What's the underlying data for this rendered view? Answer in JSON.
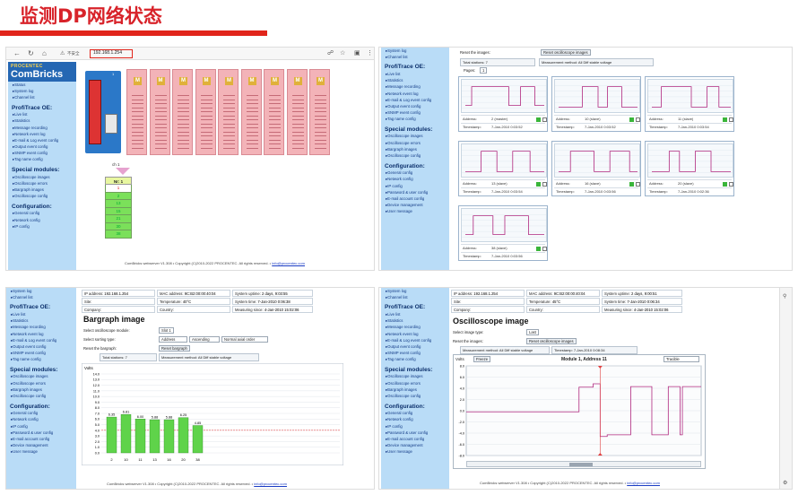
{
  "heading": "监测DP网络状态",
  "colors": {
    "accent_red": "#e1251b",
    "sidebar_bg": "#b9dcf7",
    "module_pink": "#f3b3b8",
    "bar_green": "#5fd34a",
    "signal": "#b0287f"
  },
  "browser": {
    "address": "192.168.1.254",
    "security_label": "不安全",
    "icons": [
      "back-icon",
      "refresh-icon",
      "home-icon",
      "warning-icon",
      "share-icon",
      "star-icon",
      "extensions-icon",
      "more-icon"
    ]
  },
  "logo": {
    "brand_top": "PROCENTEC",
    "brand_main": "ComBricks"
  },
  "sidebar_a": {
    "top_items": [
      "Status",
      "System log",
      "Channel list"
    ],
    "sections": [
      {
        "title": "ProfiTrace OE:",
        "items": [
          "Live list",
          "Statistics",
          "Message recording",
          "Network event log",
          "E-mail & Log event config",
          "Output event config",
          "SNMP event config",
          "Tag name config"
        ]
      },
      {
        "title": "Special modules:",
        "items": [
          "Oscilloscope images",
          "Oscilloscope errors",
          "Bargraph images",
          "Oscilloscope config"
        ]
      },
      {
        "title": "Configuration:",
        "items": [
          "General config",
          "Network config",
          "IP config"
        ]
      }
    ]
  },
  "sidebar_b": {
    "top_items": [
      "System log",
      "Channel list"
    ],
    "sections": [
      {
        "title": "ProfiTrace OE:",
        "items": [
          "Live list",
          "Statistics",
          "Message recording",
          "Network event log",
          "E-mail & Log event config",
          "Output event config",
          "SNMP event config",
          "Tag name config"
        ]
      },
      {
        "title": "Special modules:",
        "items": [
          "Oscilloscope images",
          "Oscilloscope errors",
          "Bargraph images",
          "Oscilloscope config"
        ]
      },
      {
        "title": "Configuration:",
        "items": [
          "General config",
          "Network config",
          "IP config",
          "Password & user config",
          "E-mail account config",
          "Device management",
          "User message"
        ]
      }
    ]
  },
  "rack": {
    "head_label": "1",
    "module_labels": [
      "M",
      "M",
      "M",
      "M",
      "M",
      "M",
      "M",
      "M",
      "M"
    ],
    "channel_label": "ch 1",
    "slave_header": "Nr: 1",
    "slaves": [
      "1",
      "2",
      "13",
      "15",
      "21",
      "30",
      "38"
    ]
  },
  "footer": {
    "text": "ComBricks webserver V1.308 • Copyright (C)2010-2022 PROCENTEC. All rights reserved. •",
    "email": "info@procentec.com"
  },
  "osc_overview": {
    "reset_label": "Reset the images:",
    "reset_button": "Reset oscilloscope images",
    "total_stations": "Total stations: 7",
    "measurement": "Measurement method: All Diff stable voltage",
    "pages_label": "Pages:",
    "page": "1",
    "cards": [
      {
        "address": "2 (master)",
        "timestamp": "7-Jan-2010 0:03:52"
      },
      {
        "address": "10 (slave)",
        "timestamp": "7-Jan-2010 0:03:52"
      },
      {
        "address": "11 (slave)",
        "timestamp": "7-Jan-2010 0:03:54"
      },
      {
        "address": "13 (slave)",
        "timestamp": "7-Jan-2010 0:03:54"
      },
      {
        "address": "16 (slave)",
        "timestamp": "7-Jan-2010 0:03:56"
      },
      {
        "address": "20 (slave)",
        "timestamp": "7-Jan-2010 0:02:36"
      },
      {
        "address": "38 (slave)",
        "timestamp": "7-Jan-2010 0:03:56"
      }
    ],
    "address_label": "Address:",
    "timestamp_label": "Timestamp:"
  },
  "device_info": {
    "ip_label": "IP address:",
    "ip": "192.168.1.254",
    "mac_label": "MAC address:",
    "mac": "9C:B2:00:00:40:04",
    "uptime_label": "System uptime:",
    "uptime": "2 days, 9:03:55",
    "uptime2": "2 days, 9:00:51",
    "site_label": "Site:",
    "temp_label": "Temperature:",
    "temp": "40°C",
    "temp2": "45°C",
    "time_label": "System time:",
    "time": "7-Jan-2010 0:06:38",
    "time2": "7-Jan-2010 0:06:34",
    "company_label": "Company:",
    "country_label": "Country:",
    "measure_label": "Measuring since:",
    "measure": "4-Jan-2010 15:02:06"
  },
  "bargraph": {
    "page_title": "Bargraph image",
    "module_label": "Select oscilloscope module:",
    "module_value": "Slot 1",
    "sort_label": "Select sorting type:",
    "sort_value": "Address",
    "order_value": "Ascending",
    "voltage_value": "Normal axial order",
    "reset_label": "Reset the bargraph:",
    "reset_button": "Reset bargraph",
    "total_stations": "Total stations: 7",
    "measurement": "Measurement method: All Diff stable voltage"
  },
  "osc_single": {
    "page_title": "Oscilloscope image",
    "type_label": "Select image type:",
    "type_value": "Last",
    "reset_label": "Reset the images:",
    "reset_button": "Reset oscilloscope images",
    "measurement": "Measurement method: All Diff stable voltage",
    "timestamp_text": "Timestamp: 7-Jan-2010 0:08:34",
    "volts": "Volts",
    "freeze_button": "Freeze",
    "plot_title": "Module 1, Address 11",
    "mode_value": "Tracible",
    "y_ticks": [
      "8.0",
      "6.0",
      "4.0",
      "2.0",
      "0.0",
      "-2.0",
      "-4.0",
      "-6.0",
      "-8.0"
    ]
  },
  "chart_data": {
    "type": "bar",
    "title": "",
    "ylabel": "Volts",
    "categories": [
      "2",
      "10",
      "11",
      "13",
      "16",
      "20",
      "38"
    ],
    "values": [
      6.35,
      6.81,
      6.0,
      5.88,
      5.88,
      6.25,
      4.85
    ],
    "value_labels": [
      "6.35",
      "6.81",
      "6.00",
      "5.88",
      "5.88",
      "6.25",
      "4.85"
    ],
    "ylim": [
      0,
      14
    ],
    "y_ticks": [
      "14.0",
      "13.0",
      "12.0",
      "11.0",
      "10.0",
      "9.0",
      "8.0",
      "7.0",
      "6.0",
      "5.0",
      "4.0",
      "3.0",
      "2.0",
      "1.0",
      "0.0"
    ],
    "grid": true
  }
}
